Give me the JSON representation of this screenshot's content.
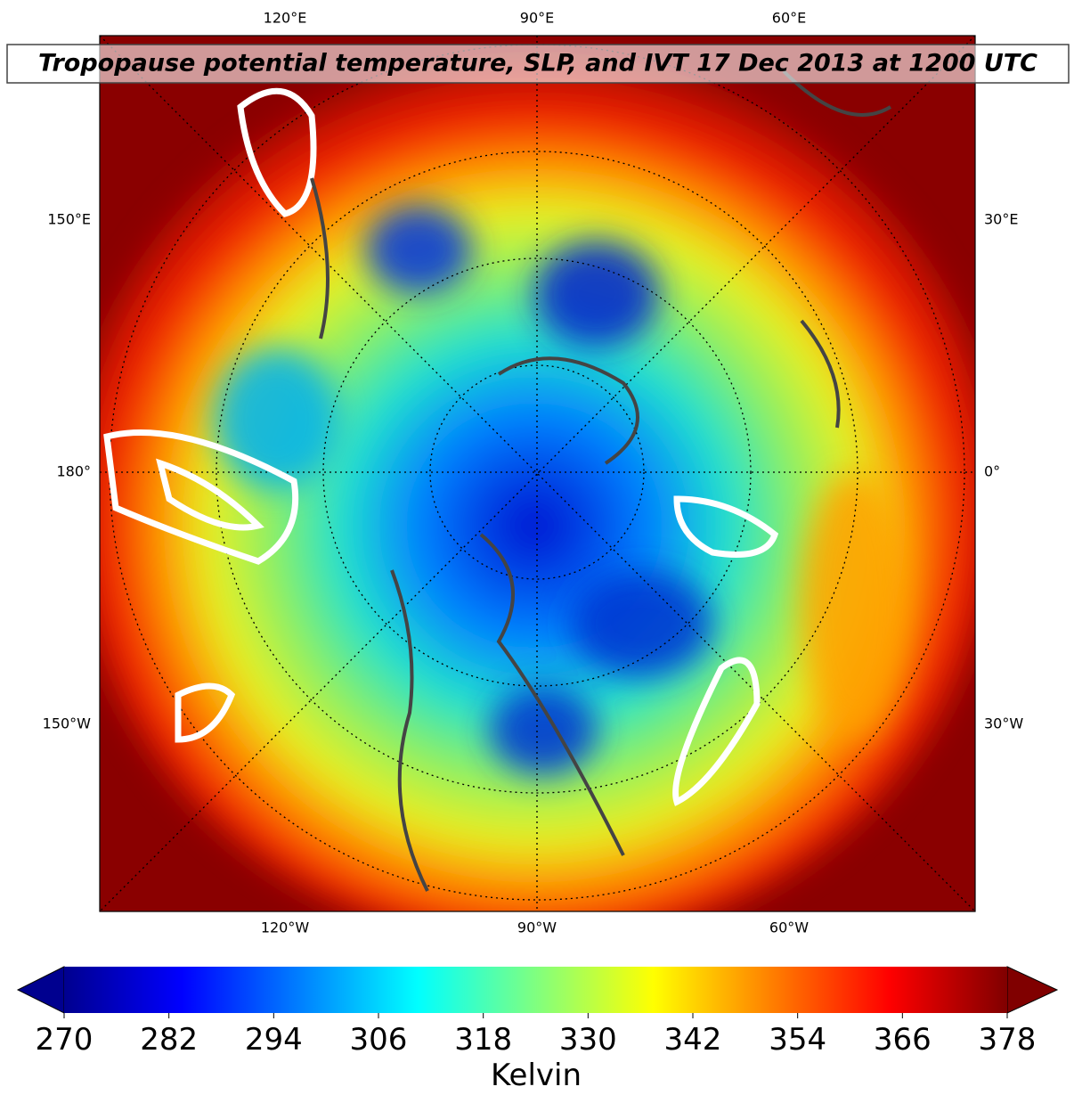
{
  "title": "Tropopause potential temperature, SLP, and IVT 17 Dec 2013 at 1200 UTC",
  "map": {
    "top_labels": [
      "120°E",
      "90°E",
      "60°E"
    ],
    "bottom_labels": [
      "120°W",
      "90°W",
      "60°W"
    ],
    "left_labels": [
      "150°E",
      "180°",
      "150°W"
    ],
    "right_labels": [
      "30°E",
      "0°",
      "30°W"
    ]
  },
  "colorbar": {
    "label": "Kelvin",
    "range": [
      270,
      378
    ],
    "ticks": [
      270,
      282,
      294,
      306,
      318,
      330,
      342,
      354,
      366,
      378
    ]
  }
}
